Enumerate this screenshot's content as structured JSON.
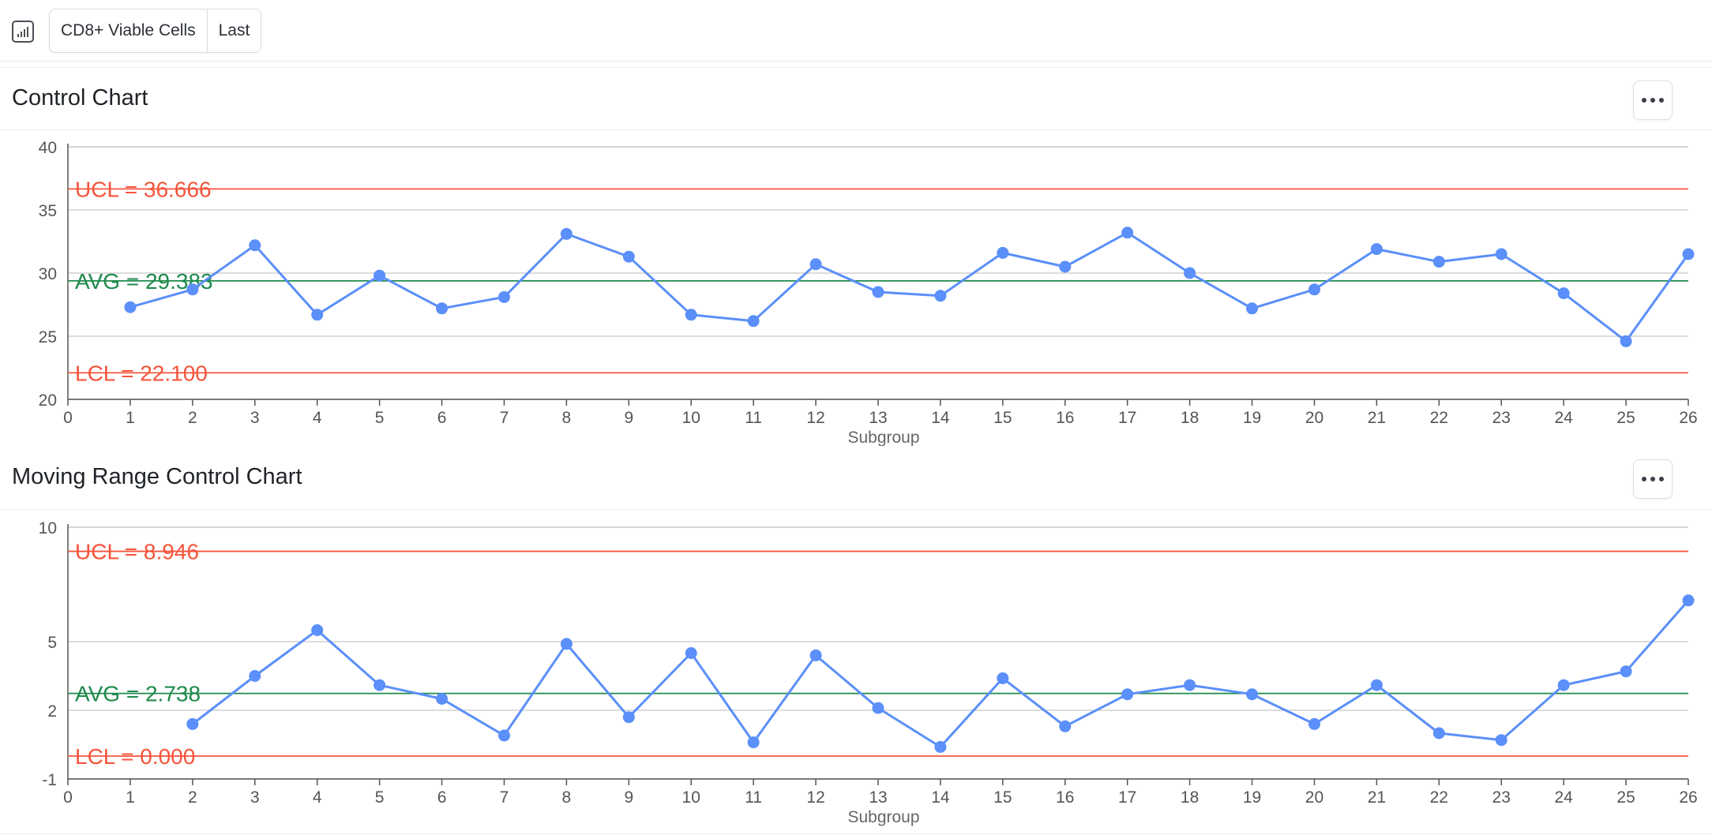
{
  "toolbar": {
    "icon": "bar-chart-icon",
    "segments": [
      "CD8+ Viable Cells",
      "Last"
    ]
  },
  "panels": [
    {
      "title": "Control Chart"
    },
    {
      "title": "Moving Range Control Chart"
    }
  ],
  "colors": {
    "series": "#5b8ff9",
    "limit": "#f5553c",
    "average": "#1f8a4c",
    "grid": "#d0d0d0",
    "axis": "#555555"
  },
  "chart_data": [
    {
      "type": "line",
      "title": "Control Chart",
      "xlabel": "Subgroup",
      "ylabel": "",
      "xlim": [
        0,
        26
      ],
      "ylim": [
        20,
        40
      ],
      "x_ticks": [
        0,
        1,
        2,
        3,
        4,
        5,
        6,
        7,
        8,
        9,
        10,
        11,
        12,
        13,
        14,
        15,
        16,
        17,
        18,
        19,
        20,
        21,
        22,
        23,
        24,
        25,
        26
      ],
      "y_ticks": [
        20,
        25,
        30,
        35,
        40
      ],
      "x": [
        1,
        2,
        3,
        4,
        5,
        6,
        7,
        8,
        9,
        10,
        11,
        12,
        13,
        14,
        15,
        16,
        17,
        18,
        19,
        20,
        21,
        22,
        23,
        24,
        25,
        26
      ],
      "values": [
        27.3,
        28.7,
        32.2,
        26.7,
        29.8,
        27.2,
        28.1,
        33.1,
        31.3,
        26.7,
        26.2,
        30.7,
        28.5,
        28.2,
        31.6,
        30.5,
        33.2,
        30.0,
        27.2,
        28.7,
        31.9,
        30.9,
        31.5,
        28.4,
        24.6,
        31.5
      ],
      "reference_lines": [
        {
          "label": "UCL = 36.666",
          "value": 36.666,
          "kind": "limit"
        },
        {
          "label": "AVG = 29.383",
          "value": 29.383,
          "kind": "average"
        },
        {
          "label": "LCL = 22.100",
          "value": 22.1,
          "kind": "limit"
        }
      ],
      "grid": true,
      "legend": "none"
    },
    {
      "type": "line",
      "title": "Moving Range Control Chart",
      "xlabel": "Subgroup",
      "ylabel": "",
      "xlim": [
        0,
        26
      ],
      "ylim": [
        -1,
        10
      ],
      "x_ticks": [
        0,
        1,
        2,
        3,
        4,
        5,
        6,
        7,
        8,
        9,
        10,
        11,
        12,
        13,
        14,
        15,
        16,
        17,
        18,
        19,
        20,
        21,
        22,
        23,
        24,
        25,
        26
      ],
      "y_ticks": [
        -1,
        2,
        5,
        10
      ],
      "x": [
        2,
        3,
        4,
        5,
        6,
        7,
        8,
        9,
        10,
        11,
        12,
        13,
        14,
        15,
        16,
        17,
        18,
        19,
        20,
        21,
        22,
        23,
        24,
        25,
        26
      ],
      "values": [
        1.4,
        3.5,
        5.5,
        3.1,
        2.5,
        0.9,
        4.9,
        1.7,
        4.5,
        0.6,
        4.4,
        2.1,
        0.4,
        3.4,
        1.3,
        2.7,
        3.1,
        2.7,
        1.4,
        3.1,
        1.0,
        0.7,
        3.1,
        3.7,
        6.8
      ],
      "reference_lines": [
        {
          "label": "UCL = 8.946",
          "value": 8.946,
          "kind": "limit"
        },
        {
          "label": "AVG = 2.738",
          "value": 2.738,
          "kind": "average"
        },
        {
          "label": "LCL = 0.000",
          "value": 0.0,
          "kind": "limit"
        }
      ],
      "grid": true,
      "legend": "none"
    }
  ]
}
